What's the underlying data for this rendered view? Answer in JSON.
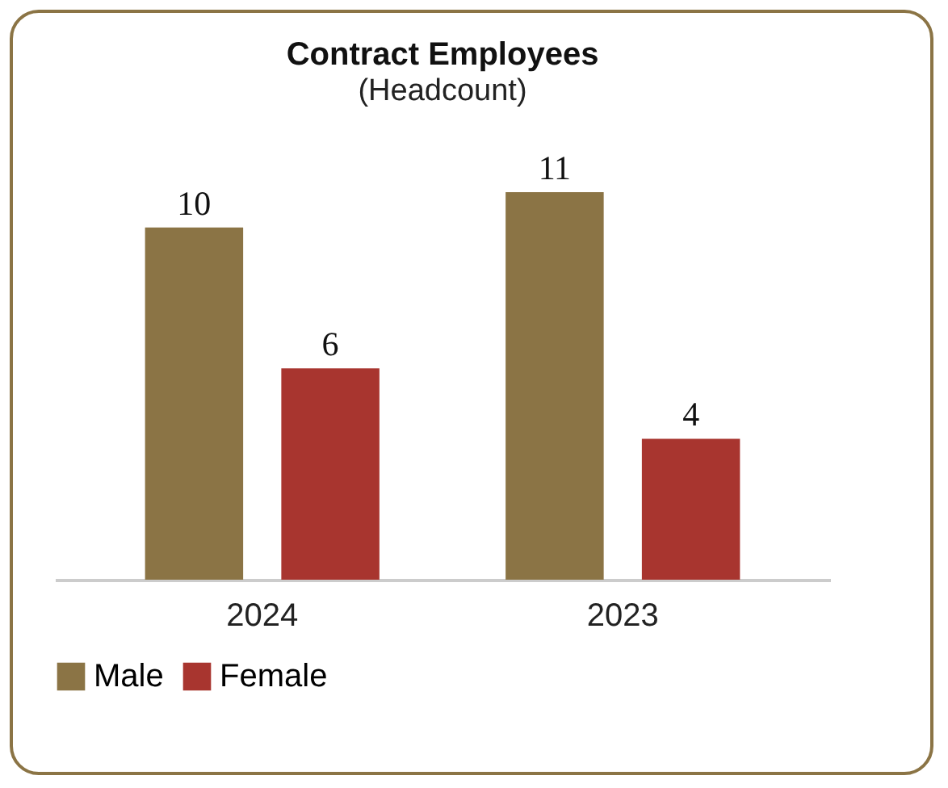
{
  "chart_data": {
    "type": "bar",
    "title": "Contract Employees",
    "subtitle": "(Headcount)",
    "categories": [
      "2024",
      "2023"
    ],
    "series": [
      {
        "name": "Male",
        "color": "#8b7445",
        "values": [
          10,
          11
        ]
      },
      {
        "name": "Female",
        "color": "#a8352f",
        "values": [
          6,
          4
        ]
      }
    ],
    "data_labels": true,
    "legend": "bottom",
    "grid": false
  }
}
